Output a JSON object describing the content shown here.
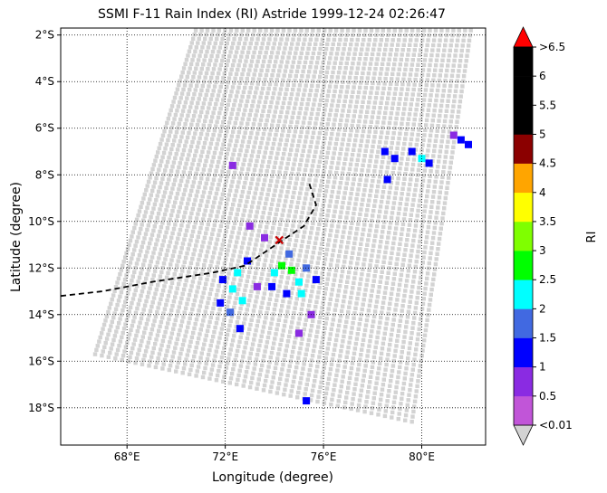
{
  "chart_data": {
    "type": "heatmap",
    "title": "SSMI F-11 Rain Index (RI) Astride 1999-12-24 02:26:47",
    "xlabel": "Longitude (degree)",
    "ylabel": "Latitude (degree)",
    "xlim": [
      65.3,
      82.6
    ],
    "ylim": [
      -19.6,
      -1.7
    ],
    "xticks": [
      {
        "value": 68,
        "label": "68°E"
      },
      {
        "value": 72,
        "label": "72°E"
      },
      {
        "value": 76,
        "label": "76°E"
      },
      {
        "value": 80,
        "label": "80°E"
      }
    ],
    "yticks": [
      {
        "value": -2,
        "label": "2°S"
      },
      {
        "value": -4,
        "label": "4°S"
      },
      {
        "value": -6,
        "label": "6°S"
      },
      {
        "value": -8,
        "label": "8°S"
      },
      {
        "value": -10,
        "label": "10°S"
      },
      {
        "value": -12,
        "label": "12°S"
      },
      {
        "value": -14,
        "label": "14°S"
      },
      {
        "value": -16,
        "label": "16°S"
      },
      {
        "value": -18,
        "label": "18°S"
      }
    ],
    "grid": true,
    "swath_color": "#d3d3d3",
    "swath_corners": [
      [
        70.8,
        -1.8
      ],
      [
        82.0,
        -1.8
      ],
      [
        79.6,
        -18.6
      ],
      [
        66.7,
        -15.7
      ]
    ],
    "track": [
      [
        65.3,
        -13.2
      ],
      [
        67.0,
        -13.0
      ],
      [
        69.0,
        -12.6
      ],
      [
        71.5,
        -12.2
      ],
      [
        72.8,
        -11.9
      ],
      [
        74.2,
        -10.9
      ],
      [
        75.2,
        -10.2
      ],
      [
        75.7,
        -9.3
      ],
      [
        75.4,
        -8.3
      ]
    ],
    "storm_center": {
      "lon": 74.2,
      "lat": -10.8,
      "color": "#cc0000"
    },
    "rain_cells": [
      {
        "lon": 72.3,
        "lat": -12.9,
        "ri": 2.2
      },
      {
        "lon": 72.5,
        "lat": -12.2,
        "ri": 2.3
      },
      {
        "lon": 72.7,
        "lat": -13.4,
        "ri": 2.1
      },
      {
        "lon": 72.2,
        "lat": -13.9,
        "ri": 1.6
      },
      {
        "lon": 71.9,
        "lat": -12.5,
        "ri": 1.3
      },
      {
        "lon": 72.9,
        "lat": -11.7,
        "ri": 1.4
      },
      {
        "lon": 72.6,
        "lat": -14.6,
        "ri": 1.2
      },
      {
        "lon": 71.8,
        "lat": -13.5,
        "ri": 1.1
      },
      {
        "lon": 73.3,
        "lat": -12.8,
        "ri": 0.9
      },
      {
        "lon": 74.3,
        "lat": -11.9,
        "ri": 2.8
      },
      {
        "lon": 74.7,
        "lat": -12.1,
        "ri": 2.6
      },
      {
        "lon": 74.0,
        "lat": -12.2,
        "ri": 2.4
      },
      {
        "lon": 75.0,
        "lat": -12.6,
        "ri": 2.2
      },
      {
        "lon": 75.3,
        "lat": -12.0,
        "ri": 1.8
      },
      {
        "lon": 74.6,
        "lat": -11.4,
        "ri": 1.5
      },
      {
        "lon": 75.1,
        "lat": -13.1,
        "ri": 2.1
      },
      {
        "lon": 73.9,
        "lat": -12.8,
        "ri": 1.3
      },
      {
        "lon": 75.7,
        "lat": -12.5,
        "ri": 1.1
      },
      {
        "lon": 74.5,
        "lat": -13.1,
        "ri": 1.2
      },
      {
        "lon": 73.6,
        "lat": -10.7,
        "ri": 0.8
      },
      {
        "lon": 78.5,
        "lat": -7.0,
        "ri": 1.3
      },
      {
        "lon": 78.9,
        "lat": -7.3,
        "ri": 1.1
      },
      {
        "lon": 79.6,
        "lat": -7.0,
        "ri": 1.2
      },
      {
        "lon": 80.0,
        "lat": -7.3,
        "ri": 2.1
      },
      {
        "lon": 80.3,
        "lat": -7.5,
        "ri": 1.4
      },
      {
        "lon": 78.6,
        "lat": -8.2,
        "ri": 1.0
      },
      {
        "lon": 81.6,
        "lat": -6.5,
        "ri": 1.3
      },
      {
        "lon": 81.9,
        "lat": -6.7,
        "ri": 1.1
      },
      {
        "lon": 81.3,
        "lat": -6.3,
        "ri": 0.9
      },
      {
        "lon": 75.3,
        "lat": -17.7,
        "ri": 1.1
      },
      {
        "lon": 75.0,
        "lat": -14.8,
        "ri": 0.9
      },
      {
        "lon": 72.3,
        "lat": -7.6,
        "ri": 0.8
      },
      {
        "lon": 73.0,
        "lat": -10.2,
        "ri": 0.8
      },
      {
        "lon": 75.5,
        "lat": -14.0,
        "ri": 0.7
      }
    ],
    "colorbar": {
      "label": "RI",
      "levels": [
        "<0.01",
        "0.5",
        "1",
        "1.5",
        "2",
        "2.5",
        "3",
        "3.5",
        "4",
        "4.5",
        "5",
        "5.5",
        "6",
        ">6.5"
      ],
      "colors": [
        "#c155d8",
        "#8a2be2",
        "#0000ff",
        "#4169e1",
        "#00ffff",
        "#00ff00",
        "#7fff00",
        "#ffff00",
        "#ffa500",
        "#8b0000",
        "#000000",
        "#000000",
        "#000000"
      ],
      "over_color": "#ff0000",
      "under_color": "#d3d3d3"
    }
  }
}
